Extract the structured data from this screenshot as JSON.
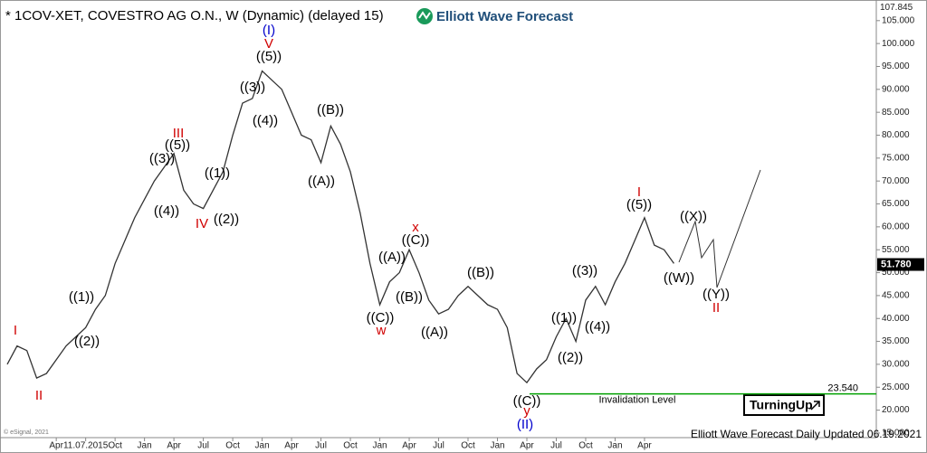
{
  "chart_data": {
    "type": "line",
    "title": "* 1COV-XET, COVESTRO AG  O.N., W (Dynamic) (delayed 15)",
    "logo": "Elliott Wave Forecast",
    "footer": "Elliott Wave Forecast Daily Updated 06.19.2021",
    "copyright": "© eSignal, 2021",
    "badge": "TurningUp",
    "color": "#333333",
    "categories": [
      null,
      null,
      null,
      null,
      null,
      "Apr",
      null,
      null,
      "11.07.2015",
      null,
      null,
      "Oct",
      null,
      null,
      "Jan",
      null,
      null,
      "Apr",
      null,
      null,
      "Jul",
      null,
      null,
      "Oct",
      null,
      null,
      "Jan",
      null,
      null,
      "Apr",
      null,
      null,
      "Jul",
      null,
      null,
      "Oct",
      null,
      null,
      "Jan",
      null,
      null,
      "Apr",
      null,
      null,
      "Jul",
      null,
      null,
      "Oct",
      null,
      null,
      "Jan",
      null,
      null,
      "Apr",
      null,
      null,
      "Jul",
      null,
      null,
      "Oct",
      null,
      null,
      "Jan",
      null,
      null,
      "Apr",
      null,
      null,
      null
    ],
    "values": [
      30,
      34,
      33,
      27,
      28,
      31,
      34,
      36,
      38,
      42,
      45,
      52,
      57,
      62,
      66,
      70,
      73,
      76,
      68,
      65,
      64,
      68,
      72,
      80,
      87,
      88,
      94,
      92,
      90,
      85,
      80,
      79,
      74,
      82,
      78,
      72,
      63,
      52,
      43,
      48,
      50,
      55,
      50,
      44,
      41,
      42,
      45,
      47,
      45,
      43,
      42,
      38,
      28,
      26,
      29,
      31,
      36,
      40,
      35,
      44,
      47,
      43,
      48,
      52,
      57,
      62,
      56,
      55,
      52
    ],
    "ylim": [
      14,
      109.5
    ],
    "yticks": [
      {
        "value": 15,
        "label": "15.000"
      },
      {
        "value": 20,
        "label": "20.000"
      },
      {
        "value": 25,
        "label": "25.000"
      },
      {
        "value": 30,
        "label": "30.000"
      },
      {
        "value": 35,
        "label": "35.000"
      },
      {
        "value": 40,
        "label": "40.000"
      },
      {
        "value": 45,
        "label": "45.000"
      },
      {
        "value": 50,
        "label": "50.000"
      },
      {
        "value": 55,
        "label": "55.000"
      },
      {
        "value": 60,
        "label": "60.000"
      },
      {
        "value": 65,
        "label": "65.000"
      },
      {
        "value": 70,
        "label": "70.000"
      },
      {
        "value": 75,
        "label": "75.000"
      },
      {
        "value": 80,
        "label": "80.000"
      },
      {
        "value": 85,
        "label": "85.000"
      },
      {
        "value": 90,
        "label": "90.000"
      },
      {
        "value": 95,
        "label": "95.000"
      },
      {
        "value": 100,
        "label": "100.000"
      },
      {
        "value": 105,
        "label": "105.000"
      }
    ],
    "top_label": {
      "value": 107.845,
      "label": "107.845"
    },
    "last_price": {
      "value": 51.78,
      "label": "51.780"
    },
    "invalidation": {
      "value": 23.54,
      "label": "23.540",
      "text": "Invalidation Level",
      "color": "#00a000"
    },
    "annotations": [
      {
        "text": "I",
        "color": "#d00000"
      },
      {
        "text": "II",
        "color": "#d00000"
      },
      {
        "text": "((1))",
        "color": "#000000"
      },
      {
        "text": "((2))",
        "color": "#000000"
      },
      {
        "text": "III",
        "color": "#d00000"
      },
      {
        "text": "((5))",
        "color": "#000000"
      },
      {
        "text": "((3))",
        "color": "#000000"
      },
      {
        "text": "((4))",
        "color": "#000000"
      },
      {
        "text": "IV",
        "color": "#d00000"
      },
      {
        "text": "((1))",
        "color": "#000000"
      },
      {
        "text": "((2))",
        "color": "#000000"
      },
      {
        "text": "((3))",
        "color": "#000000"
      },
      {
        "text": "((4))",
        "color": "#000000"
      },
      {
        "text": "((5))",
        "color": "#000000"
      },
      {
        "text": "V",
        "color": "#d00000"
      },
      {
        "text": "(I)",
        "color": "#0000cc"
      },
      {
        "text": "((B))",
        "color": "#000000"
      },
      {
        "text": "((A))",
        "color": "#000000"
      },
      {
        "text": "x",
        "color": "#d00000"
      },
      {
        "text": "((C))",
        "color": "#000000"
      },
      {
        "text": "((A))",
        "color": "#000000"
      },
      {
        "text": "((B))",
        "color": "#000000"
      },
      {
        "text": "((C))",
        "color": "#000000"
      },
      {
        "text": "w",
        "color": "#d00000"
      },
      {
        "text": "((A))",
        "color": "#000000"
      },
      {
        "text": "((B))",
        "color": "#000000"
      },
      {
        "text": "((C))",
        "color": "#000000"
      },
      {
        "text": "y",
        "color": "#d00000"
      },
      {
        "text": "(II)",
        "color": "#0000cc"
      },
      {
        "text": "((1))",
        "color": "#000000"
      },
      {
        "text": "((2))",
        "color": "#000000"
      },
      {
        "text": "((3))",
        "color": "#000000"
      },
      {
        "text": "((4))",
        "color": "#000000"
      },
      {
        "text": "((5))",
        "color": "#000000"
      },
      {
        "text": "I",
        "color": "#d00000"
      },
      {
        "text": "((X))",
        "color": "#000000"
      },
      {
        "text": "((W))",
        "color": "#000000"
      },
      {
        "text": "((Y))",
        "color": "#000000"
      },
      {
        "text": "II",
        "color": "#d00000"
      }
    ]
  }
}
